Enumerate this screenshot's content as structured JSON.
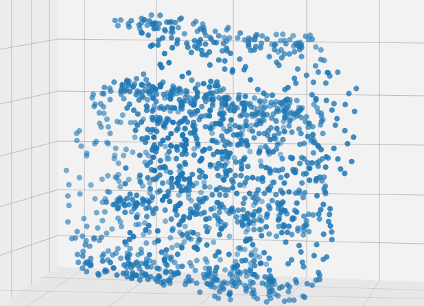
{
  "chart_data": {
    "type": "scatter",
    "projection": "3d",
    "title": "",
    "xlabel": "",
    "ylabel": "",
    "zlabel": "",
    "grid": true,
    "marker_color": "#1f77b4",
    "pane_colors": {
      "back": "#f2f2f2",
      "left": "#ececec",
      "floor": "#e7e7e7",
      "grid": "#b8b8b8"
    },
    "shape": "swiss-roll",
    "n_points": 1500,
    "t_range": [
      4.7,
      14.1
    ],
    "height_range": [
      0,
      21
    ],
    "x_range": [
      -11,
      13
    ],
    "z_range": [
      -12,
      15
    ],
    "noise": 0.45,
    "seed": 7
  }
}
